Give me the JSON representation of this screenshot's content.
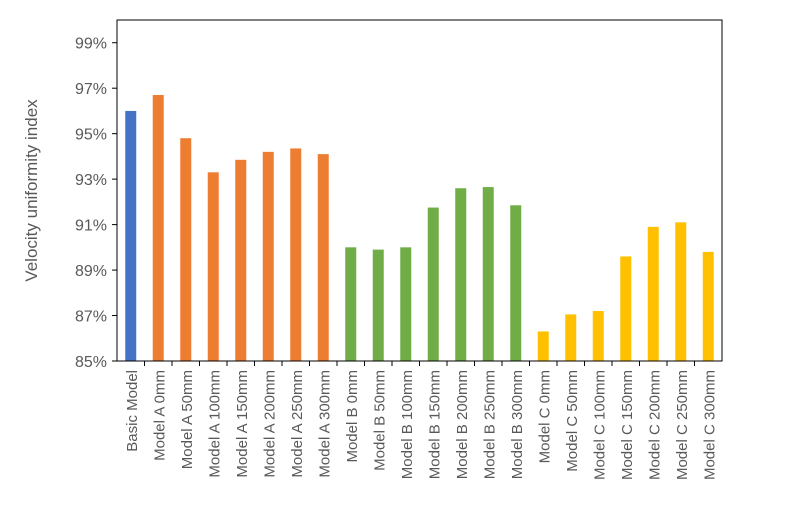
{
  "chart_data": {
    "type": "bar",
    "title": "",
    "xlabel": "",
    "ylabel": "Velocity uniformity index",
    "ylim": [
      85,
      100
    ],
    "yticks": [
      85,
      87,
      89,
      91,
      93,
      95,
      97,
      99
    ],
    "ytick_suffix": "%",
    "grid": false,
    "legend": "none",
    "categories": [
      "Basic Model",
      "Model A 0mm",
      "Model A 50mm",
      "Model A 100mm",
      "Model A 150mm",
      "Model A 200mm",
      "Model A 250mm",
      "Model A 300mm",
      "Model B 0mm",
      "Model B 50mm",
      "Model B 100mm",
      "Model B 150mm",
      "Model B 200mm",
      "Model B 250mm",
      "Model B 300mm",
      "Model C 0mm",
      "Model C 50mm",
      "Model C 100mm",
      "Model C 150mm",
      "Model C 200mm",
      "Model C 250mm",
      "Model C 300mm"
    ],
    "values": [
      96.0,
      96.7,
      94.8,
      93.3,
      93.85,
      94.2,
      94.35,
      94.1,
      90.0,
      89.9,
      90.0,
      91.75,
      92.6,
      92.65,
      91.85,
      86.3,
      87.05,
      87.2,
      89.6,
      90.9,
      91.1,
      89.8
    ],
    "colors": [
      "#4472C4",
      "#ED7D31",
      "#ED7D31",
      "#ED7D31",
      "#ED7D31",
      "#ED7D31",
      "#ED7D31",
      "#ED7D31",
      "#70AD47",
      "#70AD47",
      "#70AD47",
      "#70AD47",
      "#70AD47",
      "#70AD47",
      "#70AD47",
      "#FFC000",
      "#FFC000",
      "#FFC000",
      "#FFC000",
      "#FFC000",
      "#FFC000",
      "#FFC000"
    ]
  }
}
